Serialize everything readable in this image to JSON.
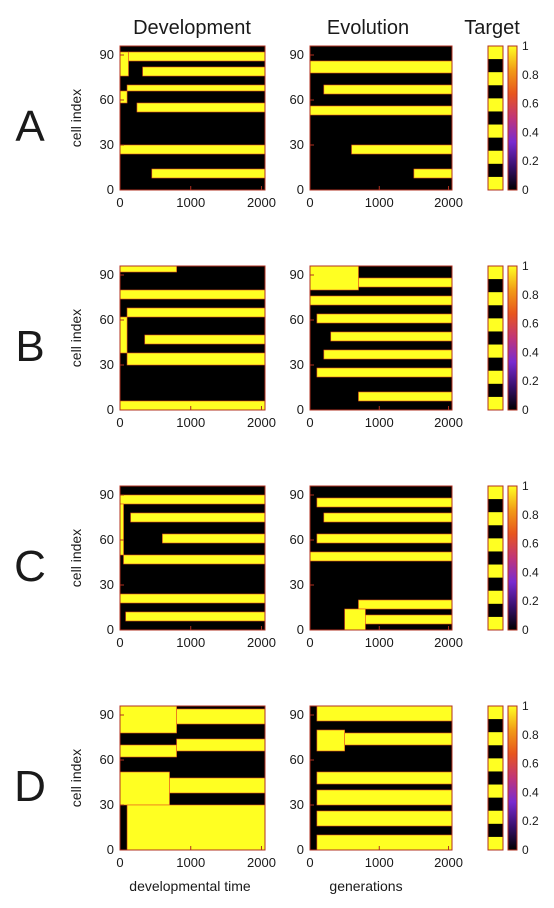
{
  "figure": {
    "column_titles": [
      "Development",
      "Evolution",
      "Target"
    ],
    "ylabel": "cell index",
    "xlabels": [
      "developmental time",
      "generations",
      ""
    ]
  },
  "colors": {
    "scale": [
      "#000000",
      "#3a0f6e",
      "#7a2ad0",
      "#c0357a",
      "#e8551e",
      "#f29b16",
      "#ffff22"
    ],
    "axis": "#b03020",
    "text": "#1a1a1a"
  },
  "chart_data": {
    "type": "heatmap",
    "axes": {
      "y_ticks": [
        0,
        30,
        60,
        90
      ],
      "y_range": [
        0,
        96
      ],
      "x_ticks": [
        0,
        1000,
        2000
      ],
      "x_range": [
        0,
        2050
      ]
    },
    "colorbar": {
      "ticks": [
        "1",
        "0.8",
        "0.6",
        "0.4",
        "0.2",
        "0"
      ],
      "range": [
        0,
        1
      ]
    },
    "panels": [
      {
        "label": "A",
        "development": [
          {
            "y": [
              76,
              82
            ],
            "x": [
              320,
              2050
            ]
          },
          {
            "y": [
              76,
              92
            ],
            "x": [
              0,
              120
            ]
          },
          {
            "y": [
              86,
              92
            ],
            "x": [
              120,
              2050
            ]
          },
          {
            "y": [
              66,
              70
            ],
            "x": [
              100,
              2050
            ]
          },
          {
            "y": [
              52,
              58
            ],
            "x": [
              240,
              2050
            ]
          },
          {
            "y": [
              58,
              66
            ],
            "x": [
              0,
              100
            ]
          },
          {
            "y": [
              24,
              30
            ],
            "x": [
              0,
              2050
            ]
          },
          {
            "y": [
              8,
              14
            ],
            "x": [
              450,
              2050
            ]
          }
        ],
        "evolution": [
          {
            "y": [
              78,
              86
            ],
            "x": [
              0,
              2050
            ]
          },
          {
            "y": [
              64,
              70
            ],
            "x": [
              200,
              2050
            ]
          },
          {
            "y": [
              50,
              56
            ],
            "x": [
              0,
              2050
            ]
          },
          {
            "y": [
              24,
              30
            ],
            "x": [
              600,
              2050
            ]
          },
          {
            "y": [
              8,
              14
            ],
            "x": [
              1500,
              2050
            ]
          }
        ],
        "target": [
          1,
          0,
          1,
          0,
          1,
          0,
          1,
          0,
          1,
          0,
          1
        ]
      },
      {
        "label": "B",
        "development": [
          {
            "y": [
              92,
              96
            ],
            "x": [
              0,
              800
            ]
          },
          {
            "y": [
              74,
              80
            ],
            "x": [
              0,
              2050
            ]
          },
          {
            "y": [
              62,
              68
            ],
            "x": [
              100,
              2050
            ]
          },
          {
            "y": [
              44,
              50
            ],
            "x": [
              350,
              2050
            ]
          },
          {
            "y": [
              30,
              38
            ],
            "x": [
              100,
              2050
            ]
          },
          {
            "y": [
              38,
              62
            ],
            "x": [
              0,
              100
            ]
          },
          {
            "y": [
              0,
              6
            ],
            "x": [
              0,
              2050
            ]
          }
        ],
        "evolution": [
          {
            "y": [
              80,
              96
            ],
            "x": [
              0,
              700
            ]
          },
          {
            "y": [
              82,
              88
            ],
            "x": [
              700,
              2050
            ]
          },
          {
            "y": [
              70,
              76
            ],
            "x": [
              0,
              2050
            ]
          },
          {
            "y": [
              58,
              64
            ],
            "x": [
              100,
              2050
            ]
          },
          {
            "y": [
              46,
              52
            ],
            "x": [
              300,
              2050
            ]
          },
          {
            "y": [
              34,
              40
            ],
            "x": [
              200,
              2050
            ]
          },
          {
            "y": [
              22,
              28
            ],
            "x": [
              100,
              2050
            ]
          },
          {
            "y": [
              6,
              12
            ],
            "x": [
              700,
              2050
            ]
          }
        ],
        "target": [
          1,
          0,
          1,
          0,
          1,
          0,
          1,
          0,
          1,
          0,
          1
        ]
      },
      {
        "label": "C",
        "development": [
          {
            "y": [
              84,
              90
            ],
            "x": [
              0,
              2050
            ]
          },
          {
            "y": [
              72,
              78
            ],
            "x": [
              150,
              2050
            ]
          },
          {
            "y": [
              58,
              64
            ],
            "x": [
              600,
              2050
            ]
          },
          {
            "y": [
              44,
              50
            ],
            "x": [
              50,
              2050
            ]
          },
          {
            "y": [
              50,
              84
            ],
            "x": [
              0,
              50
            ]
          },
          {
            "y": [
              18,
              24
            ],
            "x": [
              0,
              2050
            ]
          },
          {
            "y": [
              6,
              12
            ],
            "x": [
              80,
              2050
            ]
          }
        ],
        "evolution": [
          {
            "y": [
              82,
              88
            ],
            "x": [
              100,
              2050
            ]
          },
          {
            "y": [
              72,
              78
            ],
            "x": [
              200,
              2050
            ]
          },
          {
            "y": [
              58,
              64
            ],
            "x": [
              100,
              2050
            ]
          },
          {
            "y": [
              46,
              52
            ],
            "x": [
              0,
              2050
            ]
          },
          {
            "y": [
              14,
              20
            ],
            "x": [
              700,
              2050
            ]
          },
          {
            "y": [
              0,
              14
            ],
            "x": [
              500,
              800
            ]
          },
          {
            "y": [
              4,
              10
            ],
            "x": [
              800,
              2050
            ]
          }
        ],
        "target": [
          1,
          0,
          1,
          0,
          1,
          0,
          1,
          0,
          1,
          0,
          1
        ]
      },
      {
        "label": "D",
        "development": [
          {
            "y": [
              78,
              96
            ],
            "x": [
              0,
              800
            ]
          },
          {
            "y": [
              62,
              70
            ],
            "x": [
              0,
              800
            ]
          },
          {
            "y": [
              84,
              94
            ],
            "x": [
              800,
              2050
            ]
          },
          {
            "y": [
              66,
              74
            ],
            "x": [
              800,
              2050
            ]
          },
          {
            "y": [
              30,
              52
            ],
            "x": [
              0,
              700
            ]
          },
          {
            "y": [
              38,
              48
            ],
            "x": [
              700,
              2050
            ]
          },
          {
            "y": [
              0,
              30
            ],
            "x": [
              100,
              2050
            ]
          }
        ],
        "evolution": [
          {
            "y": [
              86,
              96
            ],
            "x": [
              100,
              2050
            ]
          },
          {
            "y": [
              66,
              80
            ],
            "x": [
              100,
              500
            ]
          },
          {
            "y": [
              70,
              78
            ],
            "x": [
              500,
              2050
            ]
          },
          {
            "y": [
              44,
              52
            ],
            "x": [
              100,
              2050
            ]
          },
          {
            "y": [
              30,
              40
            ],
            "x": [
              100,
              2050
            ]
          },
          {
            "y": [
              16,
              26
            ],
            "x": [
              100,
              2050
            ]
          },
          {
            "y": [
              0,
              10
            ],
            "x": [
              100,
              2050
            ]
          }
        ],
        "target": [
          1,
          0,
          1,
          0,
          1,
          0,
          1,
          0,
          1,
          0,
          1
        ]
      }
    ]
  }
}
